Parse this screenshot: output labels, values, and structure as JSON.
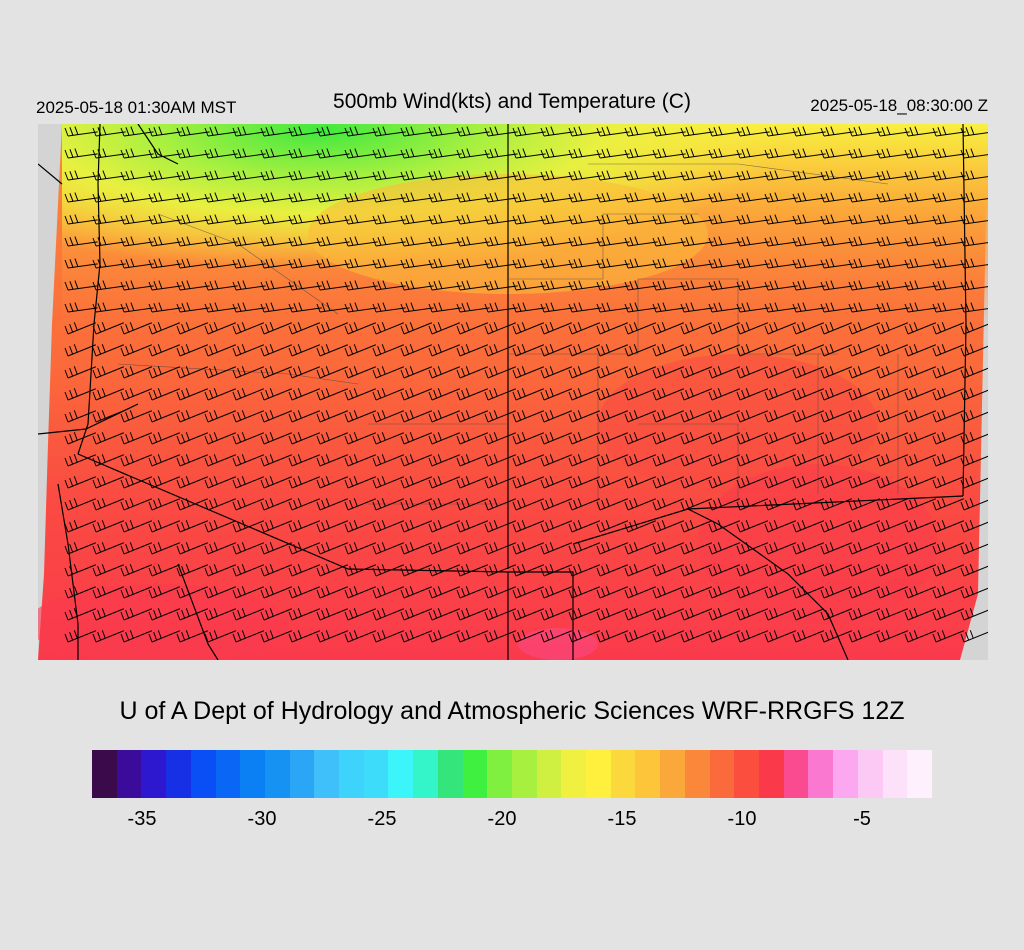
{
  "header": {
    "local_time": "2025-05-18 01:30AM MST",
    "title": "500mb Wind(kts) and Temperature (C)",
    "utc_time": "2025-05-18_08:30:00 Z"
  },
  "credit": "U of A Dept of Hydrology and Atmospheric Sciences WRF-RRGFS 12Z",
  "colorbar": {
    "colors": [
      "#3a0a4a",
      "#3b0b9c",
      "#2d17cf",
      "#1730e6",
      "#0a4ff5",
      "#0a67f5",
      "#0b80f5",
      "#1693f2",
      "#2ba5f5",
      "#40c0fa",
      "#3dd3fb",
      "#3ddcfb",
      "#3bf5fb",
      "#34f5c9",
      "#33e57a",
      "#40f040",
      "#7ff040",
      "#a8f040",
      "#cff040",
      "#eff040",
      "#fef03c",
      "#fbd93c",
      "#fcc53a",
      "#fba83a",
      "#fb883a",
      "#fb6a3a",
      "#fb4e3e",
      "#fa3a4a",
      "#fa4a90",
      "#fb78d0",
      "#fba8f0",
      "#fcc8f4",
      "#fde0f9",
      "#fef0fc"
    ],
    "tick_labels": [
      "-35",
      "-30",
      "-25",
      "-20",
      "-15",
      "-10",
      "-5"
    ],
    "tick_values": [
      -35,
      -30,
      -25,
      -20,
      -15,
      -10,
      -5
    ],
    "range": [
      -36,
      -1
    ]
  },
  "map": {
    "field": "500mb temperature",
    "units": "C",
    "wind_units": "kts",
    "background_color": "#d4d4d4",
    "boundary_color": "#000000"
  }
}
